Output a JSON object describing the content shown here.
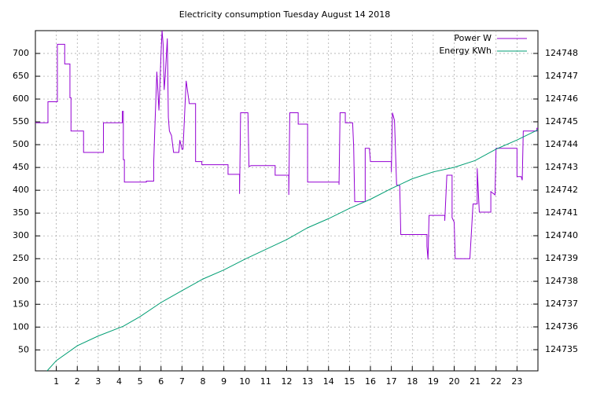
{
  "chart_data": {
    "type": "line",
    "title": "Electricity consumption Tuesday August 14 2018",
    "xlim": [
      0,
      24
    ],
    "xticks": [
      1,
      2,
      3,
      4,
      5,
      6,
      7,
      8,
      9,
      10,
      11,
      12,
      13,
      14,
      15,
      16,
      17,
      18,
      19,
      20,
      21,
      22,
      23
    ],
    "ylim": [
      4,
      750
    ],
    "yticks": [
      50,
      100,
      150,
      200,
      250,
      300,
      350,
      400,
      450,
      500,
      550,
      600,
      650,
      700
    ],
    "y2lim": [
      124734.07,
      124749
    ],
    "y2ticks": [
      124735,
      124736,
      124737,
      124738,
      124739,
      124740,
      124741,
      124742,
      124743,
      124744,
      124745,
      124746,
      124747,
      124748
    ],
    "grid": true,
    "legend": "top-right",
    "series": [
      {
        "name": "Power W",
        "color": "#9400d3",
        "x": [
          0,
          0.6,
          0.6,
          1.05,
          1.05,
          1.4,
          1.4,
          1.65,
          1.65,
          1.7,
          1.7,
          2.3,
          2.3,
          3.25,
          3.25,
          4.15,
          4.15,
          4.2,
          4.2,
          4.25,
          4.25,
          5.3,
          5.3,
          5.65,
          5.65,
          5.7,
          5.8,
          5.9,
          6.0,
          6.05,
          6.1,
          6.15,
          6.2,
          6.3,
          6.35,
          6.4,
          6.5,
          6.6,
          6.85,
          6.9,
          7.0,
          7.05,
          7.2,
          7.35,
          7.65,
          7.65,
          7.95,
          7.95,
          9.2,
          9.2,
          9.75,
          9.75,
          9.8,
          10.15,
          10.2,
          10.3,
          11.45,
          11.45,
          12.1,
          12.1,
          12.15,
          12.55,
          12.55,
          13.0,
          13.0,
          14.5,
          14.5,
          14.55,
          14.8,
          14.8,
          15.15,
          15.2,
          15.25,
          15.75,
          15.75,
          15.95,
          16.0,
          17.0,
          17.0,
          17.05,
          17.15,
          17.25,
          17.4,
          17.45,
          18.7,
          18.7,
          18.75,
          18.8,
          19.55,
          19.55,
          19.65,
          19.9,
          19.9,
          20.0,
          20.05,
          20.75,
          20.9,
          21.1,
          21.1,
          21.2,
          21.75,
          21.75,
          21.95,
          22.0,
          23.0,
          23.0,
          23.2,
          23.25,
          23.3,
          23.95,
          23.95,
          24
        ],
        "values": [
          548,
          548,
          594,
          594,
          720,
          720,
          677,
          677,
          603,
          603,
          530,
          530,
          483,
          483,
          548,
          548,
          573,
          573,
          467,
          467,
          418,
          418,
          420,
          420,
          460,
          530,
          660,
          575,
          700,
          750,
          720,
          620,
          650,
          733,
          560,
          530,
          520,
          483,
          483,
          510,
          490,
          490,
          640,
          590,
          590,
          463,
          463,
          456,
          456,
          435,
          435,
          392,
          570,
          570,
          452,
          454,
          454,
          433,
          433,
          390,
          570,
          570,
          545,
          545,
          418,
          418,
          412,
          570,
          570,
          548,
          548,
          495,
          375,
          375,
          492,
          492,
          463,
          463,
          440,
          570,
          553,
          412,
          410,
          303,
          303,
          277,
          248,
          345,
          345,
          333,
          433,
          433,
          340,
          330,
          250,
          250,
          370,
          370,
          448,
          352,
          352,
          397,
          390,
          492,
          492,
          430,
          430,
          422,
          530,
          530,
          536,
          536
        ]
      },
      {
        "name": "Energy KWh",
        "color": "#009e73",
        "axis": "y2",
        "x": [
          0.56,
          1,
          2,
          3,
          4.2,
          5,
          6,
          7,
          8,
          9,
          10,
          11,
          12,
          13,
          14,
          15,
          16,
          17,
          18,
          19,
          20,
          21,
          22,
          23,
          24
        ],
        "values": [
          124734.07,
          124734.52,
          124735.17,
          124735.6,
          124736.03,
          124736.45,
          124737.07,
          124737.59,
          124738.1,
          124738.5,
          124738.97,
          124739.4,
          124739.83,
          124740.35,
          124740.75,
          124741.2,
          124741.6,
          124742.07,
          124742.5,
          124742.8,
          124743.0,
          124743.3,
          124743.8,
          124744.2,
          124744.65
        ]
      }
    ]
  }
}
